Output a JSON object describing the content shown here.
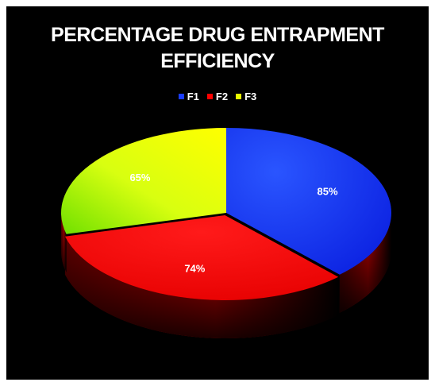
{
  "chart_data": {
    "type": "pie",
    "title_lines": [
      "PERCENTAGE DRUG ENTRAPMENT",
      "EFFICIENCY"
    ],
    "legend_position": "top",
    "categories": [
      "F1",
      "F2",
      "F3"
    ],
    "values": [
      85,
      74,
      65
    ],
    "data_labels": [
      "85%",
      "74%",
      "65%"
    ],
    "colors": [
      "#1a3cff",
      "#ff0000",
      "#e8ff00"
    ],
    "style": "3d-pie, one slice exploded"
  }
}
